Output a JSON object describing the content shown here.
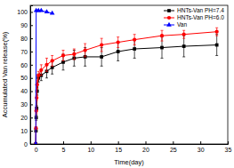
{
  "chart_data": {
    "type": "line",
    "x_label": "Time(day)",
    "y_label": "Accumulated Van release(%)",
    "xlim": [
      -1,
      35
    ],
    "xticks": [
      0,
      5,
      10,
      15,
      20,
      25,
      30,
      35
    ],
    "ylim": [
      0,
      105
    ],
    "yticks": [
      0,
      10,
      20,
      30,
      40,
      50,
      60,
      70,
      80,
      90,
      100
    ],
    "legend": "upper right",
    "series": [
      {
        "name": "HNTs-Van PH=7.4",
        "color": "#000000",
        "marker": "square",
        "x": [
          0,
          0.04,
          0.08,
          0.17,
          0.25,
          0.5,
          1,
          2,
          3,
          5,
          7,
          9,
          12,
          15,
          18,
          23,
          27,
          33
        ],
        "values": [
          0,
          10,
          20,
          27,
          40,
          50,
          52,
          55,
          58,
          62,
          65,
          66,
          66,
          70,
          72,
          73,
          74,
          75
        ],
        "errors": [
          0,
          1,
          2,
          2,
          3,
          3,
          4,
          5,
          5,
          6,
          6,
          7,
          7,
          7,
          7,
          8,
          8,
          8
        ]
      },
      {
        "name": "HNTs-Van PH=6.0",
        "color": "#ff0000",
        "marker": "circle",
        "x": [
          0,
          0.04,
          0.08,
          0.17,
          0.25,
          0.5,
          1,
          2,
          3,
          5,
          7,
          9,
          12,
          15,
          18,
          23,
          27,
          33
        ],
        "values": [
          0,
          12,
          25,
          35,
          45,
          52,
          56,
          60,
          63,
          67,
          68,
          71,
          75,
          77,
          79,
          82,
          83,
          85
        ],
        "errors": [
          0,
          1,
          2,
          2,
          3,
          3,
          4,
          5,
          4,
          4,
          4,
          5,
          5,
          4,
          4,
          4,
          3,
          3
        ]
      },
      {
        "name": "Van",
        "color": "#0000ff",
        "marker": "triangle",
        "x": [
          0,
          0.08,
          0.5,
          1,
          2,
          3
        ],
        "values": [
          0,
          101,
          101,
          101,
          100,
          99
        ]
      }
    ]
  }
}
